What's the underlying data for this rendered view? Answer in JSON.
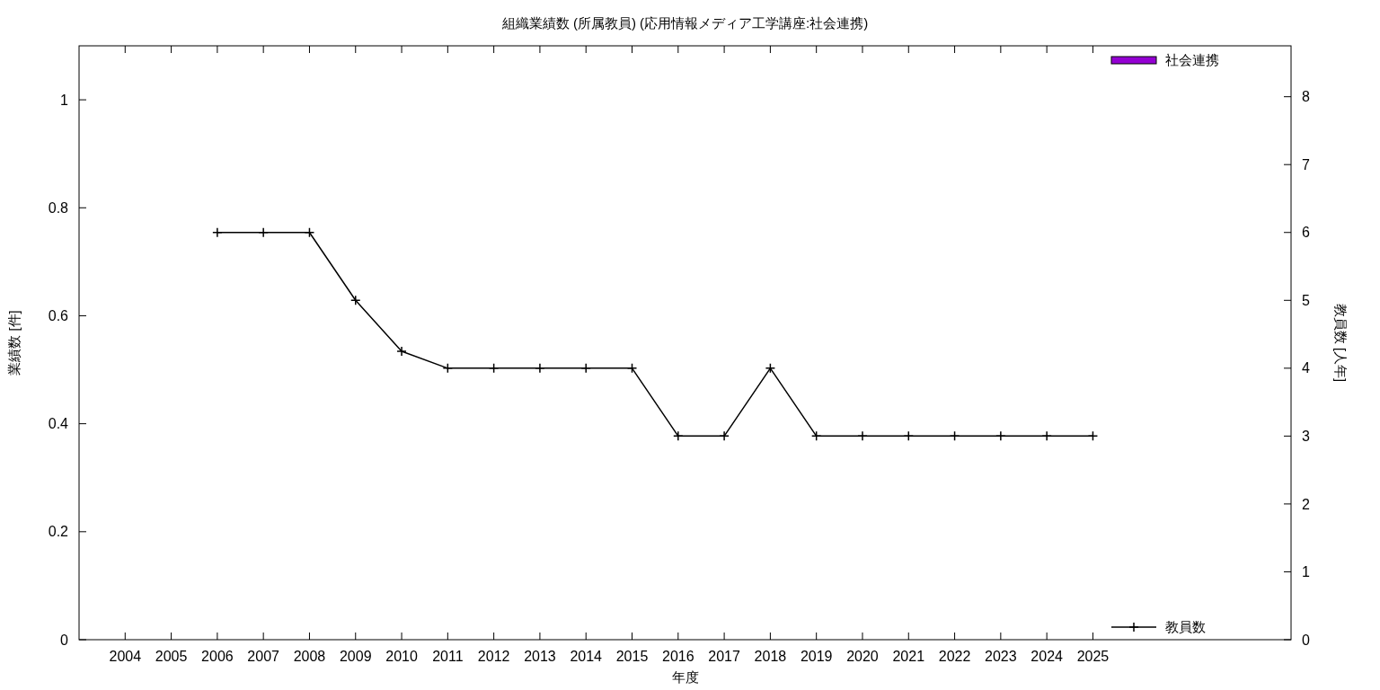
{
  "chart_data": {
    "type": "bar",
    "title": "組織業績数 (所属教員) (応用情報メディア工学講座:社会連携)",
    "xlabel": "年度",
    "ylabel": "業績数 [件]",
    "y2label": "教員数 [人年]",
    "xlim": [
      2003,
      2029.3
    ],
    "xticks": [
      2004,
      2005,
      2006,
      2007,
      2008,
      2009,
      2010,
      2011,
      2012,
      2013,
      2014,
      2015,
      2016,
      2017,
      2018,
      2019,
      2020,
      2021,
      2022,
      2023,
      2024,
      2025
    ],
    "ylim": [
      0,
      1.1
    ],
    "yticks": [
      0,
      0.2,
      0.4,
      0.6,
      0.8,
      1
    ],
    "y2lim": [
      0,
      8.75
    ],
    "y2ticks": [
      0,
      1,
      2,
      3,
      4,
      5,
      6,
      7,
      8
    ],
    "legend": "right",
    "marker": "cross",
    "series": [
      {
        "name": "社会連携",
        "color": "#9400d3",
        "x": [
          2004,
          2005,
          2006,
          2007,
          2008,
          2009,
          2010,
          2011,
          2012,
          2013,
          2014,
          2015,
          2016,
          2017,
          2018,
          2019,
          2020,
          2021,
          2022,
          2023,
          2024,
          2025
        ],
        "values": [
          0,
          0,
          0,
          0,
          0,
          0,
          0,
          0,
          0,
          0,
          0,
          0,
          0,
          0,
          0,
          0,
          0,
          0,
          0,
          0,
          0,
          0
        ]
      },
      {
        "name": "教員数",
        "type": "line",
        "axis": "y2",
        "color": "#000000",
        "x": [
          2006,
          2007,
          2008,
          2009,
          2010,
          2011,
          2012,
          2013,
          2014,
          2015,
          2016,
          2017,
          2018,
          2019,
          2020,
          2021,
          2022,
          2023,
          2024,
          2025
        ],
        "values": [
          6,
          6,
          6,
          5,
          4.25,
          4,
          4,
          4,
          4,
          4,
          3,
          3,
          4,
          3,
          3,
          3,
          3,
          3,
          3,
          3
        ]
      }
    ]
  }
}
